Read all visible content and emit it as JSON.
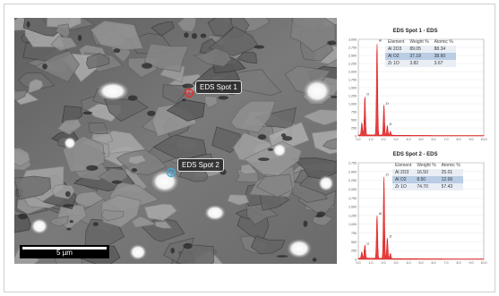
{
  "sem_image": {
    "markers": [
      {
        "label": "EDS Spot 1",
        "color": "#e03030"
      },
      {
        "label": "EDS Spot 2",
        "color": "#48a8d8"
      }
    ],
    "scale_bar": "5 µm"
  },
  "spectra": [
    {
      "title": "EDS Spot 1 - EDS",
      "table": {
        "headers": [
          "Element",
          "Weight %",
          "Atomic %"
        ],
        "rows": [
          [
            "Al 2O3",
            "89.05",
            "88.34"
          ],
          [
            "Al O2",
            "37.18",
            "38.60"
          ],
          [
            "Zr 1O",
            "3.82",
            "3.67"
          ]
        ]
      },
      "chart_data": {
        "type": "line",
        "title": "EDS Spot 1 - EDS",
        "y_ticks": [
          "3,000",
          "2,750",
          "2,500",
          "2,250",
          "2,000",
          "1,750",
          "1,500",
          "1,250",
          "1,000",
          "750",
          "500",
          "250",
          "0"
        ],
        "x_ticks": [
          "0.0",
          "1.0",
          "2.0",
          "3.0",
          "4.0",
          "5.0",
          "6.0",
          "7.0",
          "8.0",
          "9.0",
          "10.0"
        ],
        "ylim": [
          0,
          3000
        ],
        "xlim": [
          0,
          10
        ],
        "peaks": [
          {
            "x": 0.28,
            "y": 380,
            "label": "C"
          },
          {
            "x": 0.52,
            "y": 1230,
            "label": "O"
          },
          {
            "x": 1.49,
            "y": 2900,
            "label": "Al"
          },
          {
            "x": 2.04,
            "y": 950,
            "label": "Zr"
          },
          {
            "x": 2.31,
            "y": 300,
            "label": "Zr"
          },
          {
            "x": 2.55,
            "y": 120,
            "label": ""
          }
        ],
        "color": "#e02020"
      }
    },
    {
      "title": "EDS Spot 2 - EDS",
      "table": {
        "headers": [
          "Element",
          "Weight %",
          "Atomic %"
        ],
        "rows": [
          [
            "Al 2O3",
            "16.50",
            "25.01"
          ],
          [
            "Al O2",
            "8.50",
            "12.06"
          ],
          [
            "Zr 1O",
            "74.70",
            "57.43"
          ]
        ]
      },
      "chart_data": {
        "type": "line",
        "title": "EDS Spot 2 - EDS",
        "y_ticks": [
          "2,750",
          "2,500",
          "2,250",
          "2,000",
          "1,750",
          "1,500",
          "1,250",
          "1,000",
          "750",
          "500",
          "250",
          "0"
        ],
        "x_ticks": [
          "0.0",
          "1.0",
          "2.0",
          "3.0",
          "4.0",
          "5.0",
          "6.0",
          "7.0",
          "8.0",
          "9.0",
          "10.0"
        ],
        "ylim": [
          0,
          2750
        ],
        "xlim": [
          0,
          10
        ],
        "peaks": [
          {
            "x": 0.28,
            "y": 180,
            "label": "C"
          },
          {
            "x": 0.52,
            "y": 380,
            "label": "O"
          },
          {
            "x": 1.49,
            "y": 1250,
            "label": "Al"
          },
          {
            "x": 2.04,
            "y": 2350,
            "label": "Zr"
          },
          {
            "x": 2.31,
            "y": 600,
            "label": "Zr"
          },
          {
            "x": 2.55,
            "y": 150,
            "label": ""
          }
        ],
        "color": "#e02020"
      }
    }
  ]
}
